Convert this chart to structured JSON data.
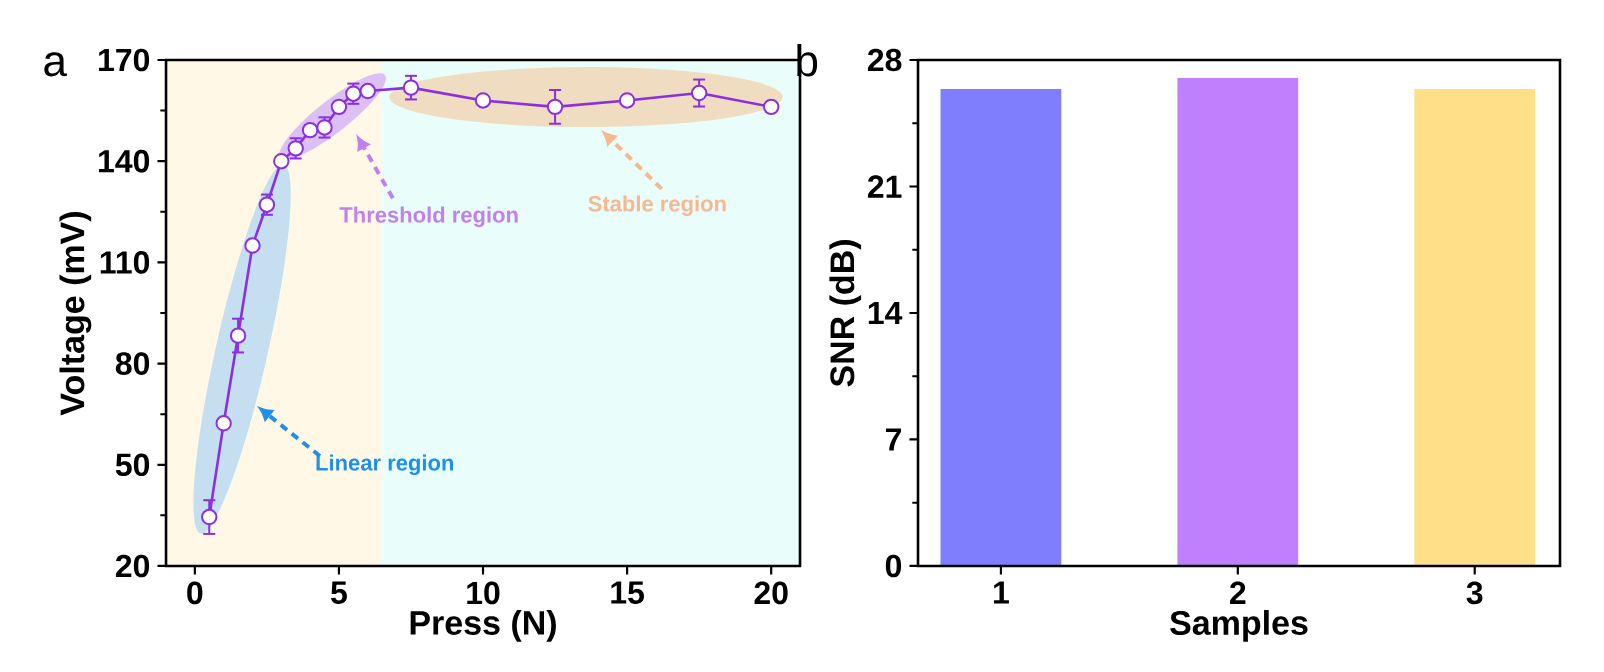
{
  "chart_data": [
    {
      "type": "line",
      "title": "a",
      "xlabel": "Press (N)",
      "ylabel": "Voltage (mV)",
      "xlim": [
        -1,
        21
      ],
      "ylim": [
        20,
        170
      ],
      "xticks": [
        0,
        5,
        10,
        15,
        20
      ],
      "yticks": [
        20,
        50,
        80,
        110,
        140,
        170
      ],
      "marker": "circle",
      "line_style": "solid",
      "series": [
        {
          "color": "#8b2fe0",
          "x": [
            0.5,
            1,
            1.5,
            2,
            2.5,
            3,
            3.5,
            4,
            4.5,
            5,
            5.5,
            6,
            7.5,
            10,
            12.5,
            15,
            17.5,
            20
          ],
          "values": [
            34.5,
            62.3,
            88.3,
            115,
            127.1,
            140,
            143.8,
            149.2,
            150,
            156.1,
            160,
            160.8,
            161.8,
            158,
            156.1,
            158,
            160.2,
            156.1
          ],
          "errors": [
            5,
            null,
            5,
            null,
            3,
            null,
            3,
            null,
            3,
            null,
            3,
            null,
            3.5,
            null,
            5,
            null,
            4,
            null
          ]
        }
      ],
      "bands": [
        {
          "axis": "x",
          "from": -1,
          "to": 6.5,
          "color": "#fff8e6"
        },
        {
          "axis": "x",
          "from": 6.5,
          "to": 21,
          "color": "#e9fdfa"
        }
      ],
      "annotations": [
        "Linear region",
        "Threshold region",
        "Stable region"
      ]
    },
    {
      "type": "bar",
      "title": "b",
      "xlabel": "Samples",
      "ylabel": "SNR (dB)",
      "categories": [
        "1",
        "2",
        "3"
      ],
      "values": [
        26.4,
        27.0,
        26.4
      ],
      "colors": [
        "#7f7ffd",
        "#c080fd",
        "#ffdf88"
      ],
      "ylim": [
        0,
        28
      ],
      "yticks": [
        0,
        7,
        14,
        21,
        28
      ]
    }
  ]
}
